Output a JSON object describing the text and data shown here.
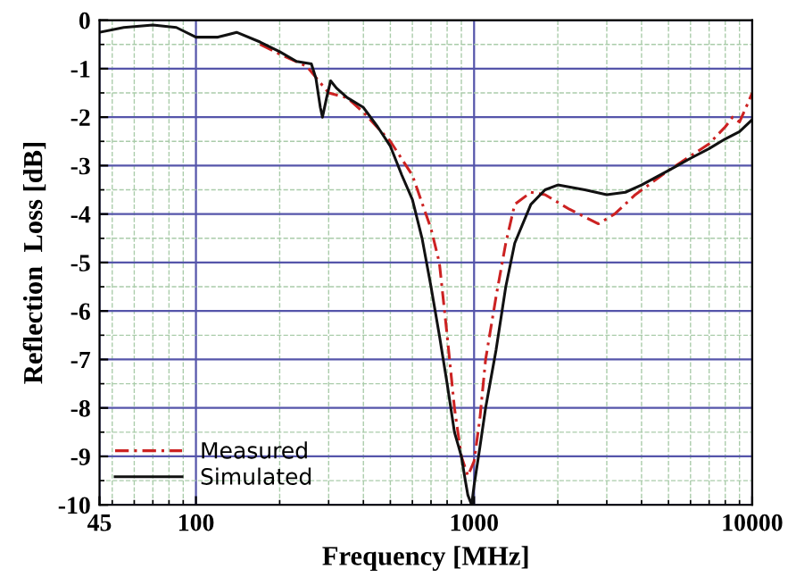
{
  "chart_data": {
    "type": "line",
    "xlabel": "Frequency [MHz]",
    "ylabel": "Reflection  Loss [dB]",
    "log": "x",
    "xlim": [
      45,
      10000
    ],
    "xticks": [
      45,
      100,
      1000,
      10000
    ],
    "ylim": [
      -10,
      0
    ],
    "yticks": [
      0,
      -1,
      -2,
      -3,
      -4,
      -5,
      -6,
      -7,
      -8,
      -9,
      -10
    ],
    "grid": true,
    "legend": "bottom left",
    "series": [
      {
        "name": "Measured",
        "color": "#cc2222",
        "line_style": "dashed",
        "x": [
          170,
          200,
          250,
          300,
          350,
          400,
          500,
          600,
          700,
          750,
          800,
          850,
          900,
          950,
          1000,
          1050,
          1100,
          1200,
          1300,
          1400,
          1600,
          1800,
          2200,
          2800,
          3200,
          3800,
          5000,
          6000,
          7000,
          8000,
          8500,
          9000,
          9500,
          10000
        ],
        "values": [
          -0.5,
          -0.7,
          -0.95,
          -1.5,
          -1.6,
          -1.9,
          -2.5,
          -3.2,
          -4.3,
          -5.0,
          -6.5,
          -8.0,
          -9.0,
          -9.4,
          -9.1,
          -8.2,
          -7.0,
          -5.7,
          -4.6,
          -3.8,
          -3.55,
          -3.6,
          -3.9,
          -4.2,
          -4.0,
          -3.6,
          -3.1,
          -2.8,
          -2.55,
          -2.2,
          -2.0,
          -2.1,
          -1.8,
          -1.5
        ]
      },
      {
        "name": "Simulated",
        "color": "#111111",
        "line_style": "solid",
        "x": [
          45,
          55,
          70,
          85,
          100,
          120,
          140,
          170,
          200,
          230,
          260,
          270,
          280,
          285,
          295,
          305,
          320,
          350,
          400,
          450,
          500,
          550,
          600,
          650,
          700,
          750,
          800,
          850,
          880,
          900,
          930,
          950,
          980,
          1000,
          1050,
          1100,
          1200,
          1300,
          1400,
          1600,
          1800,
          2000,
          2500,
          3000,
          3500,
          4000,
          5000,
          6000,
          7000,
          8000,
          9000,
          10000
        ],
        "values": [
          -0.25,
          -0.15,
          -0.1,
          -0.15,
          -0.35,
          -0.35,
          -0.25,
          -0.45,
          -0.65,
          -0.85,
          -0.9,
          -1.2,
          -1.8,
          -2.0,
          -1.6,
          -1.25,
          -1.4,
          -1.6,
          -1.8,
          -2.2,
          -2.6,
          -3.2,
          -3.7,
          -4.5,
          -5.5,
          -6.5,
          -7.5,
          -8.5,
          -8.8,
          -9.0,
          -9.5,
          -9.8,
          -10.0,
          -9.6,
          -8.8,
          -8.0,
          -6.8,
          -5.5,
          -4.6,
          -3.8,
          -3.5,
          -3.4,
          -3.5,
          -3.6,
          -3.55,
          -3.4,
          -3.1,
          -2.85,
          -2.65,
          -2.45,
          -2.3,
          -2.05
        ]
      }
    ]
  }
}
